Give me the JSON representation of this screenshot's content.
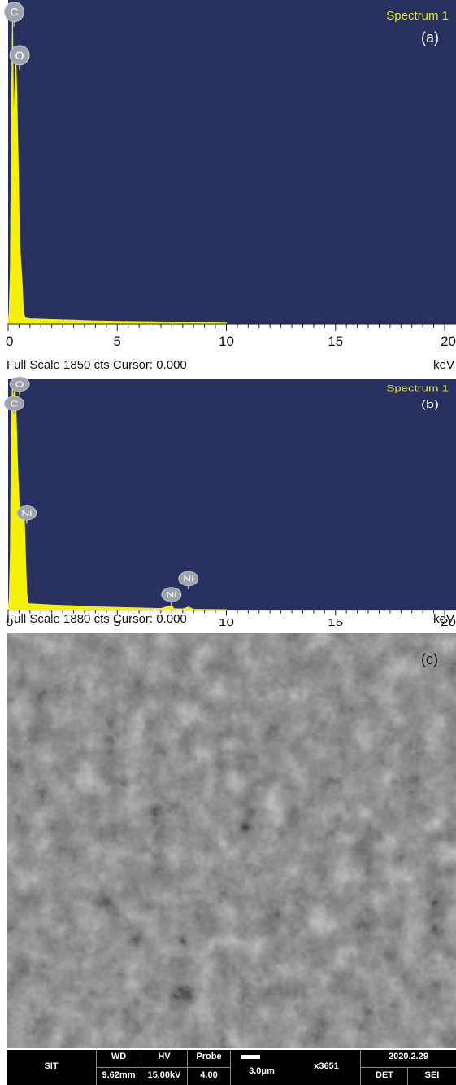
{
  "chart_data": [
    {
      "type": "line",
      "panel_label": "(a)",
      "spectrum_label": "Spectrum 1",
      "footer_left": "Full Scale 1850 cts Cursor: 0.000",
      "xunit": "keV",
      "xlim": [
        0,
        20
      ],
      "ylim": [
        0,
        1850
      ],
      "x_ticks": [
        "0",
        "5",
        "10",
        "15",
        "20"
      ],
      "series": [
        {
          "x": [
            0.0,
            0.05,
            0.1,
            0.15,
            0.2,
            0.25,
            0.3,
            0.35,
            0.4,
            0.45,
            0.5,
            0.55,
            0.6,
            0.65,
            0.7,
            0.75,
            0.8,
            0.9,
            1.0,
            1.5,
            2.0,
            3.0,
            4.0,
            5.0,
            6.0,
            7.0,
            8.0,
            9.0,
            10.0
          ],
          "y": [
            0,
            80,
            300,
            1150,
            1790,
            1100,
            1350,
            1550,
            1320,
            980,
            640,
            420,
            320,
            210,
            70,
            45,
            35,
            32,
            30,
            28,
            26,
            22,
            18,
            15,
            14,
            12,
            10,
            8,
            6
          ]
        }
      ],
      "peaks": [
        {
          "element": "C",
          "x": 0.277,
          "y": 1800
        },
        {
          "element": "O",
          "x": 0.525,
          "y": 1550
        }
      ],
      "colors": {
        "background": "#27305e",
        "trace": "#f5f10a",
        "label": "#e5e817",
        "marker": "#9ea3ad"
      }
    },
    {
      "type": "line",
      "panel_label": "(b)",
      "spectrum_label": "Spectrum 1",
      "footer_left": "Full Scale 1880 cts Cursor: 0.000",
      "xunit": "keV",
      "xlim": [
        0,
        20
      ],
      "ylim": [
        0,
        1880
      ],
      "x_ticks": [
        "0",
        "5",
        "10",
        "15",
        "20"
      ],
      "series": [
        {
          "x": [
            0.0,
            0.05,
            0.1,
            0.15,
            0.2,
            0.25,
            0.3,
            0.35,
            0.4,
            0.45,
            0.5,
            0.55,
            0.6,
            0.65,
            0.7,
            0.75,
            0.8,
            0.85,
            0.9,
            1.0,
            1.5,
            2.0,
            3.0,
            4.0,
            5.0,
            6.0,
            7.0,
            7.48,
            7.6,
            8.0,
            8.26,
            8.5,
            9.0,
            10.0
          ],
          "y": [
            0,
            100,
            450,
            1600,
            1860,
            1700,
            1850,
            1700,
            1400,
            1100,
            900,
            820,
            780,
            760,
            800,
            720,
            420,
            150,
            60,
            55,
            50,
            45,
            38,
            30,
            25,
            20,
            15,
            40,
            14,
            12,
            28,
            10,
            8,
            6
          ]
        }
      ],
      "peaks": [
        {
          "element": "O",
          "x": 0.525,
          "y": 1860
        },
        {
          "element": "C",
          "x": 0.277,
          "y": 1700
        },
        {
          "element": "Ni",
          "x": 0.851,
          "y": 800
        },
        {
          "element": "Ni",
          "x": 8.26,
          "y": 260
        },
        {
          "element": "Ni",
          "x": 7.48,
          "y": 130
        }
      ],
      "colors": {
        "background": "#27305e",
        "trace": "#f5f10a",
        "label": "#e5e817",
        "marker": "#9ea3ad"
      }
    }
  ],
  "sem_image": {
    "panel_label": "(c)",
    "databar": {
      "operator": "SIT",
      "wd_label": "WD",
      "wd_value": "9.62mm",
      "hv_label": "HV",
      "hv_value": "15.00kV",
      "probe_label": "Probe",
      "probe_value": "4.00",
      "scale_value": "3.0μm",
      "magnification": "x3651",
      "date": "2020.2.29",
      "det_label": "DET",
      "det_value": "SEI"
    }
  }
}
